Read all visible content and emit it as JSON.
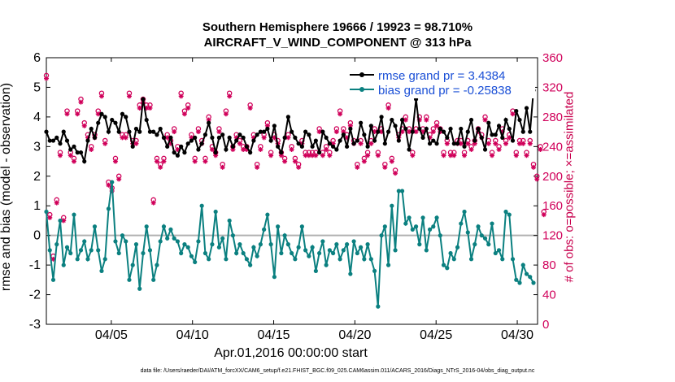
{
  "title_line1": "Southern Hemisphere 19666 / 19923 = 98.710%",
  "title_line2": "AIRCRAFT_V_WIND_COMPONENT @ 313 hPa",
  "xlabel": "Apr.01,2016 00:00:00 start",
  "ylabel_left": "rmse and bias (model - observation)",
  "ylabel_right": "# of obs: o=possible; ×=assimilated",
  "footer": "data file: /Users/raeder/DAI/ATM_forcXX/CAM6_setup/f.e21.FHIST_BGC.f09_025.CAM6assim.011/ACARS_2016/Diags_NTrS_2016-04/obs_diag_output.nc",
  "colors": {
    "rmse": "#000000",
    "bias": "#0b8080",
    "obs": "#d0005a",
    "zero_line": "#b0b0b0",
    "legend_text": "#1a4fd6"
  },
  "chart_data": {
    "type": "line",
    "title": "Southern Hemisphere 19666 / 19923 = 98.710%",
    "subtitle": "AIRCRAFT_V_WIND_COMPONENT @ 313 hPa",
    "xlim": [
      1,
      31.25
    ],
    "ylim": [
      -3,
      6
    ],
    "y2lim": [
      0,
      360
    ],
    "xticks": [
      5,
      10,
      15,
      20,
      25,
      30
    ],
    "xtick_labels": [
      "04/05",
      "04/10",
      "04/15",
      "04/20",
      "04/25",
      "04/30"
    ],
    "yticks": [
      -3,
      -2,
      -1,
      0,
      1,
      2,
      3,
      4,
      5,
      6
    ],
    "yticks_right": [
      0,
      40,
      80,
      120,
      160,
      200,
      240,
      280,
      320,
      360
    ],
    "legend": [
      {
        "label": "rmse grand pr = 3.4384",
        "series": "rmse"
      },
      {
        "label": "bias grand pr = -0.25838",
        "series": "bias"
      }
    ],
    "rmse": [
      3.5,
      3.2,
      3.2,
      3.3,
      3.1,
      3.5,
      3.2,
      2.9,
      3.0,
      2.8,
      2.8,
      2.5,
      3.2,
      3.6,
      3.3,
      3.8,
      4.1,
      4.0,
      3.5,
      3.9,
      3.8,
      3.5,
      4.1,
      4.0,
      3.5,
      3.0,
      3.6,
      3.5,
      4.6,
      3.9,
      3.5,
      3.5,
      3.4,
      3.6,
      3.3,
      3.0,
      3.3,
      2.8,
      2.7,
      3.0,
      2.8,
      3.1,
      3.2,
      3.3,
      2.9,
      3.1,
      3.4,
      3.8,
      3.3,
      2.8,
      3.3,
      3.4,
      2.9,
      3.3,
      3.0,
      3.2,
      3.4,
      3.3,
      3.0,
      2.8,
      3.2,
      3.4,
      3.5,
      3.5,
      3.6,
      3.2,
      3.7,
      3.0,
      2.8,
      3.3,
      4.0,
      3.5,
      3.3,
      3.1,
      3.0,
      3.5,
      3.4,
      3.0,
      3.2,
      2.8,
      3.5,
      3.3,
      3.1,
      3.0,
      2.9,
      3.2,
      3.4,
      3.0,
      3.6,
      3.1,
      3.2,
      3.8,
      3.4,
      3.0,
      3.7,
      3.2,
      3.5,
      4.0,
      3.1,
      3.5,
      3.9,
      3.7,
      3.2,
      3.9,
      3.6,
      2.9,
      3.5,
      4.6,
      3.6,
      3.3,
      3.6,
      3.1,
      3.2,
      3.1,
      3.6,
      3.5,
      3.3,
      3.6,
      3.1,
      3.1,
      3.6,
      3.0,
      3.5,
      3.9,
      3.2,
      3.6,
      3.3,
      2.9,
      3.8,
      3.4,
      3.4,
      3.7,
      3.3,
      3.9,
      3.6,
      3.2,
      4.2,
      3.9,
      3.5,
      4.3,
      3.5,
      4.9
    ],
    "bias": [
      0.8,
      -0.5,
      -1.5,
      -0.3,
      0.5,
      -1.0,
      -0.4,
      -0.6,
      0.7,
      -0.8,
      -0.5,
      -0.2,
      -0.8,
      -0.5,
      0.3,
      -0.5,
      -1.2,
      -0.8,
      0.9,
      1.8,
      -0.2,
      -0.6,
      0.0,
      -0.2,
      -1.5,
      -1.0,
      -0.3,
      -1.8,
      -0.6,
      0.3,
      -0.5,
      -1.5,
      -1.0,
      -0.2,
      0.3,
      -0.1,
      0.2,
      -0.1,
      -0.2,
      -0.6,
      -0.3,
      -0.4,
      -0.7,
      -0.9,
      -0.2,
      1.0,
      -0.6,
      -0.8,
      -0.3,
      0.8,
      -0.4,
      -0.1,
      -0.8,
      0.5,
      0.0,
      -0.6,
      -0.3,
      -0.6,
      -0.8,
      -1.0,
      -0.4,
      -0.7,
      -0.3,
      0.2,
      0.7,
      -0.3,
      -1.4,
      0.3,
      -0.6,
      0.0,
      -0.3,
      -0.6,
      -0.8,
      -0.4,
      0.3,
      -0.5,
      -0.7,
      -0.4,
      -1.2,
      -0.6,
      -0.2,
      -1.0,
      -0.5,
      -0.6,
      -0.3,
      -0.8,
      -0.5,
      -0.3,
      -1.3,
      -0.2,
      -0.6,
      -0.4,
      -0.8,
      -0.3,
      -0.8,
      -1.2,
      -2.4,
      0.0,
      0.3,
      -1.0,
      1.0,
      -0.5,
      1.5,
      1.5,
      0.4,
      0.6,
      0.2,
      0.3,
      -0.3,
      0.6,
      -0.5,
      0.2,
      0.3,
      0.6,
      0.0,
      -1.0,
      -1.1,
      -0.6,
      -0.8,
      -0.4,
      0.4,
      0.8,
      0.1,
      -0.8,
      -0.3,
      0.3,
      0.0,
      -0.1,
      -0.3,
      0.4,
      -0.6,
      -0.5,
      -0.8,
      0.8,
      0.7,
      -0.8,
      -1.5,
      -1.6,
      -1.0,
      -1.3,
      -1.4,
      -1.6
    ],
    "obs_possible": [
      336,
      148,
      92,
      168,
      232,
      144,
      288,
      232,
      224,
      288,
      304,
      272,
      256,
      240,
      256,
      288,
      312,
      248,
      192,
      184,
      224,
      200,
      256,
      256,
      312,
      248,
      248,
      296,
      304,
      296,
      296,
      168,
      224,
      216,
      224,
      256,
      248,
      264,
      240,
      312,
      288,
      296,
      256,
      224,
      264,
      248,
      224,
      280,
      240,
      232,
      264,
      216,
      288,
      312,
      240,
      256,
      248,
      240,
      240,
      296,
      256,
      216,
      240,
      256,
      272,
      232,
      256,
      248,
      232,
      224,
      256,
      240,
      224,
      216,
      248,
      232,
      232,
      232,
      232,
      264,
      232,
      240,
      232,
      248,
      264,
      288,
      264,
      256,
      272,
      248,
      216,
      248,
      224,
      232,
      248,
      264,
      232,
      264,
      216,
      296,
      224,
      208,
      256,
      264,
      280,
      264,
      232,
      264,
      280,
      264,
      280,
      256,
      264,
      272,
      264,
      232,
      248,
      232,
      232,
      248,
      248,
      232,
      248,
      240,
      248,
      264,
      256,
      280,
      248,
      232,
      248,
      240,
      264,
      248,
      256,
      288,
      232,
      248,
      248,
      232,
      248,
      216,
      200,
      240,
      152
    ],
    "obs_assimilated": [
      332,
      144,
      88,
      164,
      228,
      140,
      284,
      228,
      220,
      284,
      300,
      268,
      252,
      236,
      252,
      284,
      308,
      244,
      188,
      180,
      220,
      196,
      252,
      252,
      308,
      244,
      244,
      292,
      300,
      292,
      292,
      164,
      220,
      212,
      220,
      252,
      244,
      260,
      236,
      308,
      284,
      292,
      252,
      220,
      260,
      244,
      220,
      276,
      236,
      228,
      260,
      212,
      284,
      308,
      236,
      252,
      244,
      236,
      236,
      292,
      252,
      212,
      236,
      252,
      268,
      228,
      252,
      244,
      228,
      220,
      252,
      236,
      220,
      212,
      244,
      228,
      228,
      228,
      228,
      260,
      228,
      236,
      228,
      244,
      260,
      284,
      260,
      252,
      268,
      244,
      212,
      244,
      220,
      228,
      244,
      260,
      228,
      260,
      212,
      292,
      220,
      204,
      252,
      260,
      276,
      260,
      228,
      260,
      276,
      260,
      276,
      252,
      260,
      268,
      260,
      228,
      244,
      228,
      228,
      244,
      244,
      228,
      244,
      236,
      244,
      260,
      252,
      276,
      244,
      228,
      244,
      236,
      260,
      244,
      252,
      284,
      228,
      244,
      244,
      228,
      244,
      212,
      196,
      236,
      148
    ]
  }
}
